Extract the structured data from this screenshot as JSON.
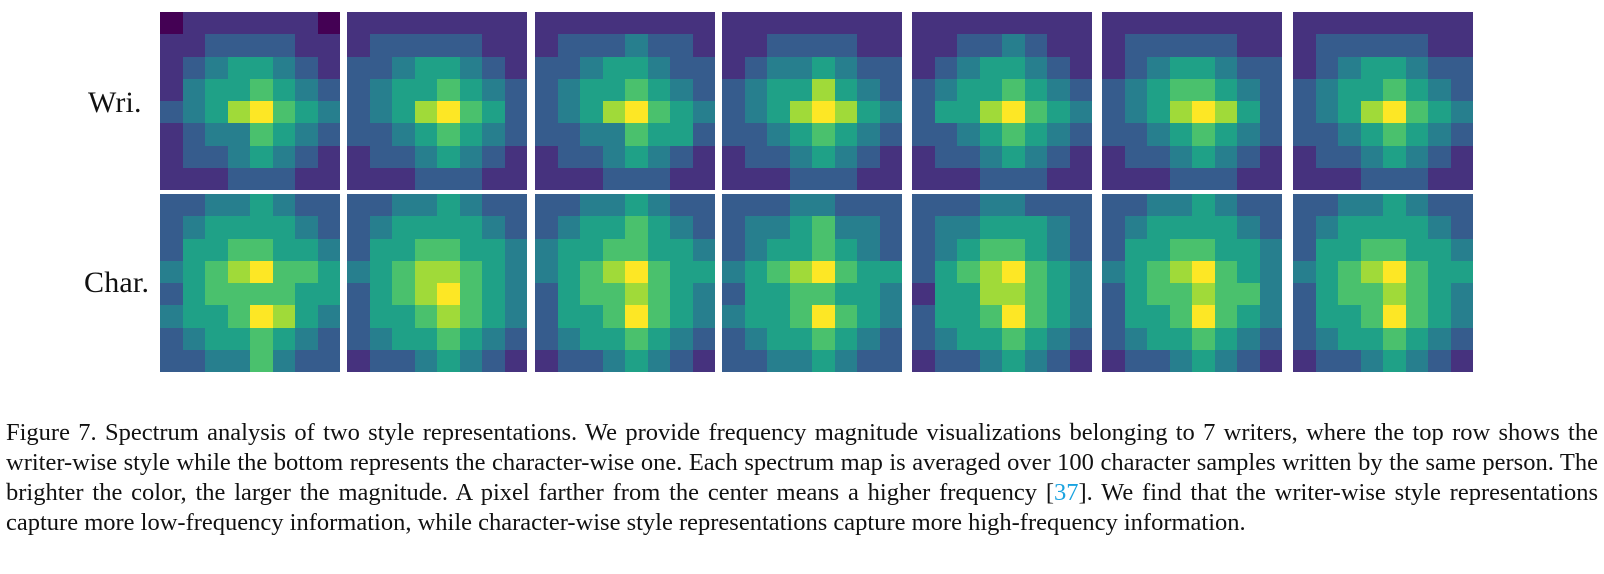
{
  "row_labels": {
    "writer": "Wri.",
    "character": "Char."
  },
  "colormap": [
    "#440154",
    "#46327e",
    "#365c8d",
    "#277f8e",
    "#1fa187",
    "#4ac16d",
    "#a0da39",
    "#fde725"
  ],
  "heatmaps": {
    "writer": [
      [
        [
          0.05,
          0.1,
          0.1,
          0.1,
          0.12,
          0.08,
          0.08,
          0.06
        ],
        [
          0.1,
          0.18,
          0.25,
          0.3,
          0.28,
          0.22,
          0.18,
          0.12
        ],
        [
          0.15,
          0.3,
          0.4,
          0.5,
          0.55,
          0.4,
          0.3,
          0.2
        ],
        [
          0.2,
          0.4,
          0.55,
          0.6,
          0.75,
          0.5,
          0.45,
          0.3
        ],
        [
          0.25,
          0.45,
          0.55,
          0.8,
          0.95,
          0.78,
          0.55,
          0.4
        ],
        [
          0.2,
          0.35,
          0.4,
          0.45,
          0.75,
          0.55,
          0.45,
          0.3
        ],
        [
          0.12,
          0.25,
          0.35,
          0.45,
          0.5,
          0.4,
          0.3,
          0.2
        ],
        [
          0.08,
          0.15,
          0.1,
          0.22,
          0.3,
          0.25,
          0.15,
          0.1
        ]
      ],
      [
        [
          0.1,
          0.12,
          0.1,
          0.08,
          0.1,
          0.12,
          0.1,
          0.08
        ],
        [
          0.15,
          0.25,
          0.3,
          0.35,
          0.32,
          0.25,
          0.2,
          0.12
        ],
        [
          0.25,
          0.35,
          0.45,
          0.5,
          0.55,
          0.4,
          0.35,
          0.2
        ],
        [
          0.3,
          0.4,
          0.5,
          0.6,
          0.78,
          0.55,
          0.45,
          0.3
        ],
        [
          0.35,
          0.45,
          0.6,
          0.8,
          0.95,
          0.78,
          0.55,
          0.35
        ],
        [
          0.25,
          0.35,
          0.45,
          0.55,
          0.75,
          0.5,
          0.4,
          0.3
        ],
        [
          0.15,
          0.25,
          0.35,
          0.45,
          0.5,
          0.4,
          0.3,
          0.2
        ],
        [
          0.1,
          0.15,
          0.2,
          0.25,
          0.3,
          0.25,
          0.15,
          0.1
        ]
      ],
      [
        [
          0.1,
          0.12,
          0.15,
          0.12,
          0.1,
          0.15,
          0.1,
          0.08
        ],
        [
          0.2,
          0.25,
          0.3,
          0.35,
          0.4,
          0.3,
          0.25,
          0.15
        ],
        [
          0.25,
          0.35,
          0.4,
          0.5,
          0.55,
          0.45,
          0.35,
          0.25
        ],
        [
          0.3,
          0.4,
          0.55,
          0.6,
          0.78,
          0.55,
          0.45,
          0.35
        ],
        [
          0.35,
          0.45,
          0.6,
          0.82,
          0.95,
          0.78,
          0.55,
          0.4
        ],
        [
          0.25,
          0.35,
          0.45,
          0.4,
          0.75,
          0.55,
          0.5,
          0.3
        ],
        [
          0.2,
          0.3,
          0.35,
          0.45,
          0.5,
          0.4,
          0.35,
          0.2
        ],
        [
          0.1,
          0.15,
          0.2,
          0.25,
          0.3,
          0.3,
          0.15,
          0.1
        ]
      ],
      [
        [
          0.08,
          0.1,
          0.12,
          0.1,
          0.12,
          0.1,
          0.12,
          0.1
        ],
        [
          0.15,
          0.2,
          0.25,
          0.3,
          0.3,
          0.25,
          0.2,
          0.15
        ],
        [
          0.2,
          0.3,
          0.4,
          0.45,
          0.55,
          0.45,
          0.3,
          0.25
        ],
        [
          0.25,
          0.4,
          0.5,
          0.6,
          0.8,
          0.55,
          0.45,
          0.3
        ],
        [
          0.3,
          0.45,
          0.6,
          0.8,
          0.95,
          0.8,
          0.55,
          0.4
        ],
        [
          0.25,
          0.35,
          0.45,
          0.55,
          0.78,
          0.5,
          0.45,
          0.3
        ],
        [
          0.15,
          0.25,
          0.35,
          0.45,
          0.5,
          0.4,
          0.3,
          0.2
        ],
        [
          0.08,
          0.15,
          0.2,
          0.25,
          0.3,
          0.25,
          0.15,
          0.1
        ]
      ],
      [
        [
          0.08,
          0.1,
          0.12,
          0.1,
          0.1,
          0.12,
          0.1,
          0.08
        ],
        [
          0.15,
          0.2,
          0.3,
          0.35,
          0.4,
          0.3,
          0.2,
          0.15
        ],
        [
          0.2,
          0.3,
          0.4,
          0.5,
          0.55,
          0.45,
          0.35,
          0.2
        ],
        [
          0.25,
          0.4,
          0.55,
          0.6,
          0.78,
          0.55,
          0.45,
          0.3
        ],
        [
          0.3,
          0.5,
          0.6,
          0.8,
          0.95,
          0.78,
          0.55,
          0.4
        ],
        [
          0.25,
          0.35,
          0.45,
          0.55,
          0.75,
          0.5,
          0.45,
          0.3
        ],
        [
          0.15,
          0.25,
          0.35,
          0.45,
          0.5,
          0.4,
          0.3,
          0.2
        ],
        [
          0.1,
          0.15,
          0.2,
          0.25,
          0.3,
          0.25,
          0.2,
          0.1
        ]
      ],
      [
        [
          0.1,
          0.12,
          0.1,
          0.12,
          0.1,
          0.12,
          0.1,
          0.08
        ],
        [
          0.15,
          0.25,
          0.3,
          0.35,
          0.35,
          0.3,
          0.2,
          0.15
        ],
        [
          0.2,
          0.3,
          0.4,
          0.5,
          0.55,
          0.45,
          0.35,
          0.25
        ],
        [
          0.25,
          0.4,
          0.55,
          0.65,
          0.78,
          0.55,
          0.45,
          0.3
        ],
        [
          0.3,
          0.45,
          0.6,
          0.8,
          0.95,
          0.8,
          0.55,
          0.35
        ],
        [
          0.25,
          0.35,
          0.45,
          0.55,
          0.75,
          0.5,
          0.45,
          0.3
        ],
        [
          0.15,
          0.25,
          0.35,
          0.4,
          0.5,
          0.4,
          0.3,
          0.2
        ],
        [
          0.1,
          0.15,
          0.2,
          0.25,
          0.3,
          0.25,
          0.15,
          0.1
        ]
      ],
      [
        [
          0.1,
          0.12,
          0.15,
          0.12,
          0.1,
          0.12,
          0.1,
          0.1
        ],
        [
          0.15,
          0.25,
          0.3,
          0.35,
          0.35,
          0.3,
          0.2,
          0.15
        ],
        [
          0.2,
          0.3,
          0.4,
          0.5,
          0.55,
          0.45,
          0.35,
          0.25
        ],
        [
          0.25,
          0.4,
          0.55,
          0.6,
          0.78,
          0.55,
          0.45,
          0.3
        ],
        [
          0.3,
          0.45,
          0.6,
          0.8,
          0.95,
          0.78,
          0.55,
          0.4
        ],
        [
          0.25,
          0.35,
          0.45,
          0.55,
          0.75,
          0.5,
          0.45,
          0.3
        ],
        [
          0.15,
          0.25,
          0.35,
          0.45,
          0.5,
          0.4,
          0.3,
          0.2
        ],
        [
          0.1,
          0.15,
          0.2,
          0.25,
          0.3,
          0.25,
          0.15,
          0.1
        ]
      ]
    ],
    "character": [
      [
        [
          0.3,
          0.35,
          0.4,
          0.4,
          0.55,
          0.4,
          0.35,
          0.3
        ],
        [
          0.3,
          0.45,
          0.5,
          0.55,
          0.6,
          0.5,
          0.4,
          0.35
        ],
        [
          0.35,
          0.5,
          0.55,
          0.65,
          0.7,
          0.6,
          0.5,
          0.4
        ],
        [
          0.4,
          0.6,
          0.65,
          0.85,
          0.95,
          0.7,
          0.65,
          0.5
        ],
        [
          0.35,
          0.55,
          0.65,
          0.7,
          0.75,
          0.7,
          0.6,
          0.5
        ],
        [
          0.4,
          0.5,
          0.6,
          0.7,
          0.95,
          0.8,
          0.55,
          0.4
        ],
        [
          0.3,
          0.45,
          0.55,
          0.6,
          0.65,
          0.55,
          0.45,
          0.35
        ],
        [
          0.25,
          0.35,
          0.4,
          0.45,
          0.65,
          0.4,
          0.35,
          0.25
        ]
      ],
      [
        [
          0.3,
          0.35,
          0.4,
          0.45,
          0.5,
          0.4,
          0.35,
          0.25
        ],
        [
          0.35,
          0.45,
          0.5,
          0.55,
          0.6,
          0.5,
          0.45,
          0.3
        ],
        [
          0.35,
          0.5,
          0.55,
          0.7,
          0.75,
          0.6,
          0.5,
          0.4
        ],
        [
          0.4,
          0.55,
          0.65,
          0.8,
          0.92,
          0.7,
          0.6,
          0.45
        ],
        [
          0.35,
          0.55,
          0.7,
          0.85,
          0.95,
          0.75,
          0.6,
          0.45
        ],
        [
          0.35,
          0.5,
          0.6,
          0.75,
          0.92,
          0.7,
          0.55,
          0.4
        ],
        [
          0.3,
          0.4,
          0.5,
          0.6,
          0.65,
          0.55,
          0.45,
          0.3
        ],
        [
          0.2,
          0.3,
          0.35,
          0.45,
          0.55,
          0.4,
          0.3,
          0.2
        ]
      ],
      [
        [
          0.3,
          0.35,
          0.4,
          0.45,
          0.55,
          0.4,
          0.35,
          0.25
        ],
        [
          0.35,
          0.45,
          0.5,
          0.6,
          0.65,
          0.5,
          0.45,
          0.3
        ],
        [
          0.4,
          0.5,
          0.6,
          0.7,
          0.7,
          0.6,
          0.5,
          0.4
        ],
        [
          0.4,
          0.55,
          0.65,
          0.8,
          0.95,
          0.7,
          0.6,
          0.5
        ],
        [
          0.3,
          0.55,
          0.65,
          0.75,
          0.8,
          0.7,
          0.55,
          0.45
        ],
        [
          0.35,
          0.5,
          0.6,
          0.7,
          0.95,
          0.75,
          0.55,
          0.4
        ],
        [
          0.3,
          0.45,
          0.5,
          0.6,
          0.65,
          0.55,
          0.45,
          0.3
        ],
        [
          0.2,
          0.3,
          0.35,
          0.45,
          0.6,
          0.4,
          0.3,
          0.2
        ]
      ],
      [
        [
          0.25,
          0.3,
          0.35,
          0.4,
          0.45,
          0.35,
          0.3,
          0.25
        ],
        [
          0.3,
          0.4,
          0.45,
          0.55,
          0.65,
          0.45,
          0.4,
          0.3
        ],
        [
          0.35,
          0.45,
          0.5,
          0.6,
          0.7,
          0.55,
          0.45,
          0.35
        ],
        [
          0.4,
          0.55,
          0.65,
          0.8,
          0.95,
          0.7,
          0.6,
          0.5
        ],
        [
          0.35,
          0.5,
          0.55,
          0.65,
          0.7,
          0.6,
          0.55,
          0.45
        ],
        [
          0.4,
          0.5,
          0.6,
          0.7,
          0.95,
          0.75,
          0.55,
          0.4
        ],
        [
          0.3,
          0.45,
          0.5,
          0.6,
          0.65,
          0.55,
          0.45,
          0.3
        ],
        [
          0.25,
          0.3,
          0.4,
          0.45,
          0.6,
          0.4,
          0.35,
          0.25
        ]
      ],
      [
        [
          0.25,
          0.3,
          0.35,
          0.4,
          0.45,
          0.35,
          0.3,
          0.25
        ],
        [
          0.3,
          0.4,
          0.45,
          0.55,
          0.6,
          0.5,
          0.4,
          0.3
        ],
        [
          0.35,
          0.45,
          0.55,
          0.65,
          0.7,
          0.6,
          0.45,
          0.35
        ],
        [
          0.35,
          0.5,
          0.65,
          0.85,
          0.95,
          0.7,
          0.6,
          0.45
        ],
        [
          0.2,
          0.5,
          0.6,
          0.8,
          0.92,
          0.7,
          0.55,
          0.4
        ],
        [
          0.35,
          0.5,
          0.6,
          0.7,
          0.95,
          0.65,
          0.55,
          0.4
        ],
        [
          0.3,
          0.4,
          0.5,
          0.6,
          0.65,
          0.55,
          0.45,
          0.3
        ],
        [
          0.2,
          0.3,
          0.35,
          0.45,
          0.55,
          0.4,
          0.3,
          0.2
        ]
      ],
      [
        [
          0.3,
          0.35,
          0.4,
          0.45,
          0.5,
          0.4,
          0.35,
          0.25
        ],
        [
          0.35,
          0.45,
          0.5,
          0.6,
          0.6,
          0.5,
          0.45,
          0.3
        ],
        [
          0.35,
          0.5,
          0.55,
          0.65,
          0.7,
          0.6,
          0.5,
          0.4
        ],
        [
          0.4,
          0.55,
          0.7,
          0.85,
          0.95,
          0.7,
          0.6,
          0.45
        ],
        [
          0.35,
          0.6,
          0.65,
          0.75,
          0.8,
          0.7,
          0.65,
          0.45
        ],
        [
          0.35,
          0.5,
          0.6,
          0.75,
          0.95,
          0.75,
          0.55,
          0.4
        ],
        [
          0.3,
          0.4,
          0.5,
          0.6,
          0.65,
          0.55,
          0.45,
          0.3
        ],
        [
          0.2,
          0.3,
          0.35,
          0.45,
          0.6,
          0.4,
          0.3,
          0.2
        ]
      ],
      [
        [
          0.3,
          0.35,
          0.4,
          0.4,
          0.5,
          0.4,
          0.35,
          0.3
        ],
        [
          0.35,
          0.45,
          0.5,
          0.55,
          0.6,
          0.5,
          0.4,
          0.35
        ],
        [
          0.35,
          0.5,
          0.55,
          0.65,
          0.7,
          0.6,
          0.5,
          0.4
        ],
        [
          0.4,
          0.55,
          0.65,
          0.8,
          0.95,
          0.7,
          0.6,
          0.5
        ],
        [
          0.3,
          0.55,
          0.65,
          0.75,
          0.8,
          0.7,
          0.6,
          0.45
        ],
        [
          0.35,
          0.5,
          0.6,
          0.75,
          0.95,
          0.75,
          0.55,
          0.4
        ],
        [
          0.3,
          0.45,
          0.5,
          0.6,
          0.65,
          0.55,
          0.45,
          0.3
        ],
        [
          0.2,
          0.3,
          0.35,
          0.45,
          0.55,
          0.4,
          0.3,
          0.2
        ]
      ]
    ]
  },
  "caption": {
    "text_before_cite": "Figure 7. Spectrum analysis of two style representations. We provide frequency magnitude visualizations belonging to 7 writers, where the top row shows the writer-wise style while the bottom represents the character-wise one. Each spectrum map is averaged over 100 character samples written by the same person. The brighter the color, the larger the magnitude. A pixel farther from the center means a higher frequency [",
    "citation": "37",
    "text_after_cite": "]. We find that the writer-wise style representations capture more low-frequency information, while character-wise style representations capture more high-frequency information."
  }
}
